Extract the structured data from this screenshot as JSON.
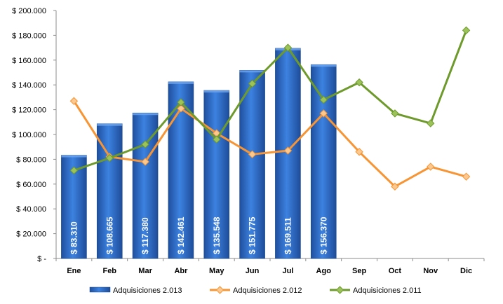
{
  "chart_data": {
    "type": "bar",
    "categories": [
      "Ene",
      "Feb",
      "Mar",
      "Abr",
      "May",
      "Jun",
      "Jul",
      "Ago",
      "Sep",
      "Oct",
      "Nov",
      "Dic"
    ],
    "y_tick_labels": [
      "$ -",
      "$ 20.000",
      "$ 40.000",
      "$ 60.000",
      "$ 80.000",
      "$ 100.000",
      "$ 120.000",
      "$ 140.000",
      "$ 160.000",
      "$ 180.000",
      "$ 200.000"
    ],
    "ylim": [
      0,
      200000
    ],
    "grid": false,
    "legend_position": "bottom",
    "series": [
      {
        "name": "Adquisiciones 2.013",
        "type": "bar",
        "color": "#2F6FD2",
        "values": [
          83310,
          108665,
          117380,
          142461,
          135548,
          151775,
          169511,
          156370,
          null,
          null,
          null,
          null
        ],
        "data_labels": [
          "$ 83.310",
          "$ 108.665",
          "$ 117.380",
          "$ 142.461",
          "$ 135.548",
          "$ 151.775",
          "$ 169.511",
          "$ 156.370"
        ]
      },
      {
        "name": "Adquisiciones 2.012",
        "type": "line",
        "color": "#F79433",
        "values": [
          127000,
          82000,
          78000,
          121000,
          101000,
          84000,
          87000,
          117000,
          86000,
          58000,
          74000,
          66000
        ]
      },
      {
        "name": "Adquisiciones 2.011",
        "type": "line",
        "color": "#6E9A2C",
        "values": [
          71000,
          81000,
          92000,
          126000,
          96000,
          141000,
          170000,
          128000,
          142000,
          117000,
          109000,
          184000
        ]
      }
    ]
  }
}
